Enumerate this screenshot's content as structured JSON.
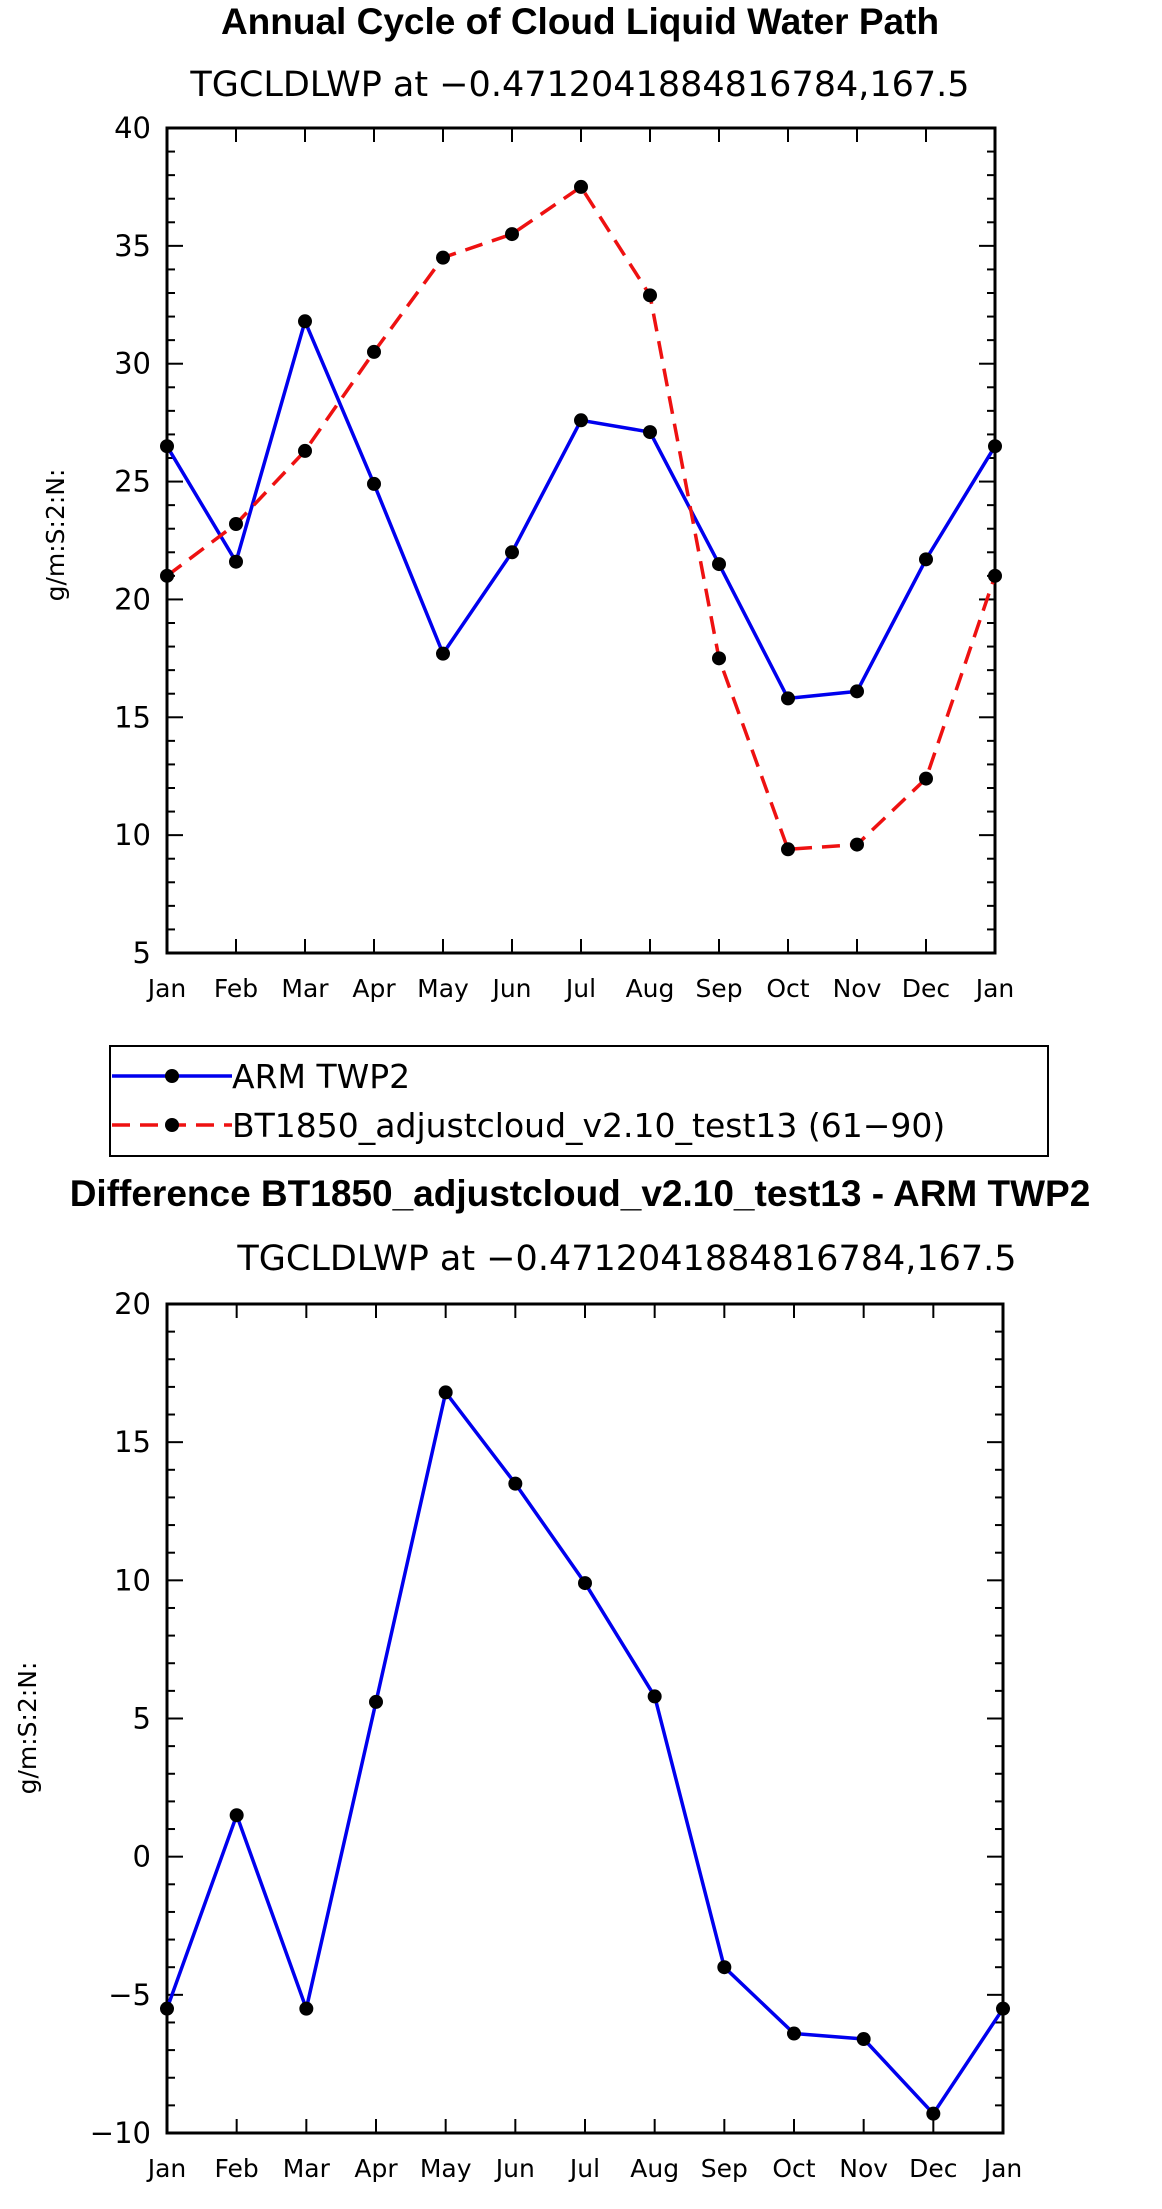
{
  "colors": {
    "series_blue": "#0000ee",
    "series_red": "#ee1111",
    "marker": "#000000",
    "axis": "#000000"
  },
  "chart_data": [
    {
      "type": "line",
      "title": "Annual Cycle of Cloud Liquid Water Path",
      "subtitle": "TGCLDLWP  at −0.4712041884816784,167.5",
      "ylabel": "g/m:S:2:N:",
      "xlabel": "",
      "categories": [
        "Jan",
        "Feb",
        "Mar",
        "Apr",
        "May",
        "Jun",
        "Jul",
        "Aug",
        "Sep",
        "Oct",
        "Nov",
        "Dec",
        "Jan"
      ],
      "ylim": [
        5,
        40
      ],
      "yticks": [
        5,
        10,
        15,
        20,
        25,
        30,
        35,
        40
      ],
      "ytick_labels": [
        "5",
        "10",
        "15",
        "20",
        "25",
        "30",
        "35",
        "40"
      ],
      "series": [
        {
          "name": "ARM TWP2",
          "style": "solid",
          "color": "#0000ee",
          "values": [
            26.5,
            21.6,
            31.8,
            24.9,
            17.7,
            22.0,
            27.6,
            27.1,
            21.5,
            15.8,
            16.1,
            21.7,
            26.5
          ]
        },
        {
          "name": "BT1850_adjustcloud_v2.10_test13 (61−90)",
          "style": "dashed",
          "color": "#ee1111",
          "values": [
            21.0,
            23.2,
            26.3,
            30.5,
            34.5,
            35.5,
            37.5,
            32.9,
            17.5,
            9.4,
            9.6,
            12.4,
            21.0
          ]
        }
      ],
      "legend": {
        "placement": "below",
        "entries": [
          "ARM TWP2",
          "BT1850_adjustcloud_v2.10_test13 (61−90)"
        ]
      }
    },
    {
      "type": "line",
      "title": "Difference BT1850_adjustcloud_v2.10_test13 - ARM TWP2",
      "subtitle": "TGCLDLWP  at −0.4712041884816784,167.5",
      "ylabel": "g/m:S:2:N:",
      "xlabel": "",
      "categories": [
        "Jan",
        "Feb",
        "Mar",
        "Apr",
        "May",
        "Jun",
        "Jul",
        "Aug",
        "Sep",
        "Oct",
        "Nov",
        "Dec",
        "Jan"
      ],
      "ylim": [
        -10,
        20
      ],
      "yticks": [
        -10,
        -5,
        0,
        5,
        10,
        15,
        20
      ],
      "ytick_labels": [
        "−10",
        "−5",
        "0",
        "5",
        "10",
        "15",
        "20"
      ],
      "series": [
        {
          "name": "Difference",
          "style": "solid",
          "color": "#0000ee",
          "values": [
            -5.5,
            1.5,
            -5.5,
            5.6,
            16.8,
            13.5,
            9.9,
            5.8,
            -4.0,
            -6.4,
            -6.6,
            -9.3,
            -5.5
          ]
        }
      ]
    }
  ]
}
